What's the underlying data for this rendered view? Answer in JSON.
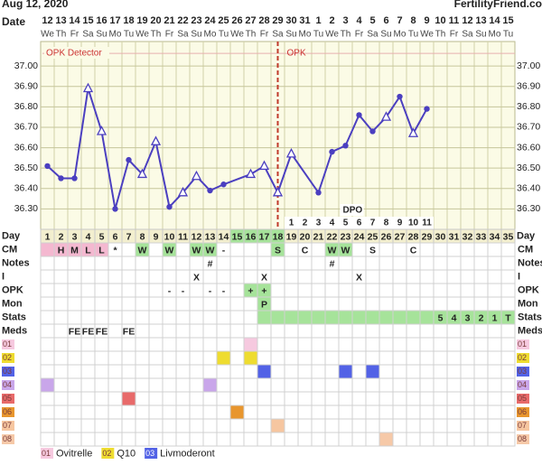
{
  "header": {
    "date": "Aug 12, 2020",
    "site": "FertilityFriend.co"
  },
  "date_row": {
    "label": "Date",
    "dates": [
      "12",
      "13",
      "14",
      "15",
      "16",
      "17",
      "18",
      "19",
      "20",
      "21",
      "22",
      "23",
      "24",
      "25",
      "26",
      "27",
      "28",
      "29",
      "30",
      "31",
      "1",
      "2",
      "3",
      "4",
      "5",
      "6",
      "7",
      "8",
      "9",
      "10",
      "11",
      "12",
      "13",
      "14",
      "15"
    ],
    "weekdays": [
      "We",
      "Th",
      "Fr",
      "Sa",
      "Su",
      "Mo",
      "Tu",
      "We",
      "Th",
      "Fr",
      "Sa",
      "Su",
      "Mo",
      "Tu",
      "We",
      "Th",
      "Fr",
      "Sa",
      "Su",
      "Mo",
      "Tu",
      "We",
      "Th",
      "Fr",
      "Sa",
      "Su",
      "Mo",
      "Tu",
      "We",
      "Th",
      "Fr",
      "Sa",
      "Su",
      "Mo",
      "Tu"
    ]
  },
  "chart_data": {
    "type": "line",
    "color": "#4b3fc0",
    "x": [
      1,
      2,
      3,
      4,
      5,
      6,
      7,
      8,
      9,
      10,
      11,
      12,
      13,
      14,
      16,
      17,
      18,
      19,
      21,
      22,
      23,
      24,
      25,
      26,
      27,
      28,
      29
    ],
    "values": [
      36.51,
      36.45,
      36.45,
      36.89,
      36.68,
      36.3,
      36.54,
      36.47,
      36.63,
      36.31,
      36.38,
      36.46,
      36.39,
      36.42,
      36.47,
      36.51,
      36.38,
      36.57,
      36.38,
      36.58,
      36.61,
      36.76,
      36.68,
      36.75,
      36.85,
      36.67,
      36.79
    ],
    "markers": [
      "dot",
      "dot",
      "dot",
      "triangle",
      "triangle",
      "dot",
      "dot",
      "triangle",
      "triangle",
      "dot",
      "triangle",
      "triangle",
      "dot",
      "dot",
      "triangle",
      "triangle",
      "triangle",
      "triangle",
      "dot",
      "dot",
      "dot",
      "dot",
      "dot",
      "triangle",
      "dot",
      "triangle",
      "dot"
    ],
    "xlim": [
      0.5,
      35.5
    ],
    "ylim": [
      36.2,
      37.12
    ],
    "yticks": [
      {
        "value": 37,
        "label": "37.00"
      },
      {
        "value": 36.9,
        "label": "36.90"
      },
      {
        "value": 36.8,
        "label": "36.80"
      },
      {
        "value": 36.7,
        "label": "36.70"
      },
      {
        "value": 36.6,
        "label": "36.60"
      },
      {
        "value": 36.5,
        "label": "36.50"
      },
      {
        "value": 36.4,
        "label": "36.40"
      },
      {
        "value": 36.3,
        "label": "36.30"
      }
    ],
    "annotations": [
      "OPK Detector",
      "OPK"
    ],
    "marker_x": 18,
    "dpo": {
      "label": "DPO",
      "numbers": {
        "19": "1",
        "20": "2",
        "21": "3",
        "22": "4",
        "23": "5",
        "24": "6",
        "25": "7",
        "26": "8",
        "27": "9",
        "28": "10",
        "29": "11"
      }
    }
  },
  "table": {
    "day_label": "Day",
    "days": [
      1,
      2,
      3,
      4,
      5,
      6,
      7,
      8,
      9,
      10,
      11,
      12,
      13,
      14,
      15,
      16,
      17,
      18,
      19,
      20,
      21,
      22,
      23,
      24,
      25,
      26,
      27,
      28,
      29,
      30,
      31,
      32,
      33,
      34,
      35
    ],
    "day_fills": {
      "15": "#a6e39a",
      "16": "#a6e39a",
      "17": "#a6e39a",
      "18": "#a6e39a"
    },
    "rows": [
      {
        "label": "CM",
        "cells": {
          "2": "H",
          "3": "M",
          "4": "L",
          "5": "L",
          "6": "*",
          "8": "W",
          "10": "W",
          "12": "W",
          "13": "W",
          "14": "-",
          "18": "S",
          "20": "C",
          "22": "W",
          "23": "W",
          "25": "S",
          "28": "C"
        },
        "fills": {
          "1": "#f4b8d0",
          "2": "#f4b8d0",
          "3": "#f4b8d0",
          "4": "#f4b8d0",
          "5": "#f4b8d0",
          "8": "#a6e39a",
          "10": "#a6e39a",
          "12": "#a6e39a",
          "13": "#a6e39a",
          "18": "#a6e39a",
          "22": "#a6e39a",
          "23": "#a6e39a"
        }
      },
      {
        "label": "Notes",
        "cells": {
          "13": "#",
          "22": "#"
        },
        "fills": {}
      },
      {
        "label": "I",
        "cells": {
          "12": "X",
          "17": "X",
          "24": "X"
        },
        "fills": {}
      },
      {
        "label": "OPK",
        "cells": {
          "10": "-",
          "11": "-",
          "13": "-",
          "14": "-",
          "16": "+",
          "17": "+"
        },
        "fills": {
          "16": "#a6e39a",
          "17": "#a6e39a"
        }
      },
      {
        "label": "Mon",
        "cells": {
          "17": "P"
        },
        "fills": {
          "17": "#a6e39a"
        }
      },
      {
        "label": "Stats",
        "cells": {
          "30": "5",
          "31": "4",
          "32": "3",
          "33": "2",
          "34": "1",
          "35": "T"
        },
        "fills": {
          "17": "#a6e39a",
          "18": "#a6e39a",
          "19": "#a6e39a",
          "20": "#a6e39a",
          "21": "#a6e39a",
          "22": "#a6e39a",
          "23": "#a6e39a",
          "24": "#a6e39a",
          "25": "#a6e39a",
          "26": "#a6e39a",
          "27": "#a6e39a",
          "28": "#a6e39a",
          "29": "#a6e39a",
          "30": "#a6e39a",
          "31": "#a6e39a",
          "32": "#a6e39a",
          "33": "#a6e39a",
          "34": "#a6e39a",
          "35": "#a6e39a"
        }
      },
      {
        "label": "Meds",
        "cells": {
          "3": "FE",
          "4": "FE",
          "5": "FE",
          "7": "FE"
        },
        "fills": {}
      },
      {
        "label": "01",
        "color": "#f6c9df",
        "cells": {},
        "fills": {
          "16": "#f6c9df"
        }
      },
      {
        "label": "02",
        "color": "#eedc30",
        "cells": {},
        "fills": {
          "14": "#eedc30",
          "16": "#eedc30"
        }
      },
      {
        "label": "03",
        "color": "#5262e6",
        "cells": {},
        "fills": {
          "17": "#5262e6",
          "23": "#5262e6",
          "25": "#5262e6"
        }
      },
      {
        "label": "04",
        "color": "#c9a6ea",
        "cells": {},
        "fills": {
          "1": "#c9a6ea",
          "13": "#c9a6ea"
        }
      },
      {
        "label": "05",
        "color": "#e86a6a",
        "cells": {},
        "fills": {
          "7": "#e86a6a"
        }
      },
      {
        "label": "06",
        "color": "#e8962e",
        "cells": {},
        "fills": {
          "15": "#e8962e"
        }
      },
      {
        "label": "07",
        "color": "#f6c6a0",
        "cells": {},
        "fills": {
          "18": "#f6c6a0"
        }
      },
      {
        "label": "08",
        "color": "#f6c9a8",
        "cells": {},
        "fills": {
          "26": "#f6c9a8"
        }
      }
    ]
  },
  "legend": [
    {
      "code": "01",
      "name": "Ovitrelle",
      "color": "#f6c9df"
    },
    {
      "code": "02",
      "name": "Q10",
      "color": "#eedc30"
    },
    {
      "code": "03",
      "name": "Livmoderont",
      "color": "#5262e6"
    }
  ]
}
